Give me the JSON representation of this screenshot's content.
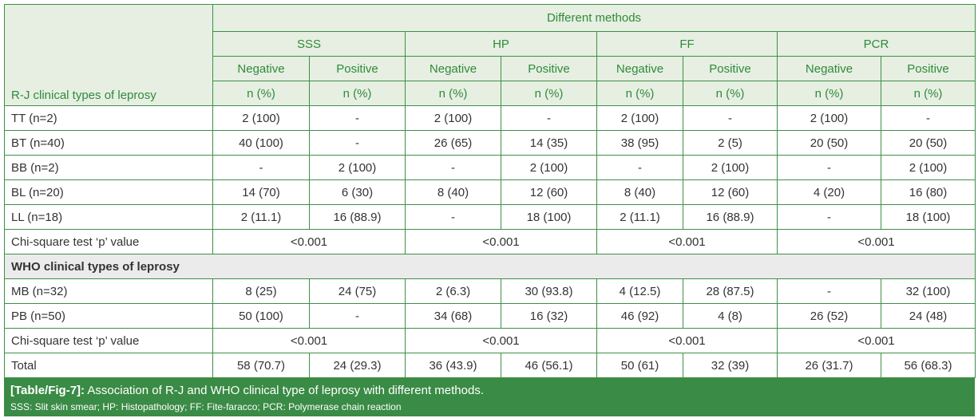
{
  "header": {
    "row_label": "R-J clinical types of leprosy",
    "group_title": "Different methods",
    "methods": [
      "SSS",
      "HP",
      "FF",
      "PCR"
    ],
    "sub": [
      "Negative",
      "Positive",
      "Negative",
      "Positive",
      "Negative",
      "Positive",
      "Negative",
      "Positive"
    ],
    "unit": [
      "n (%)",
      "n (%)",
      "n (%)",
      "n (%)",
      "n (%)",
      "n (%)",
      "n (%)",
      "n (%)"
    ]
  },
  "rj_rows": [
    {
      "label": "TT (n=2)",
      "cells": [
        "2 (100)",
        "-",
        "2 (100)",
        "-",
        "2 (100)",
        "-",
        "2 (100)",
        "-"
      ]
    },
    {
      "label": "BT (n=40)",
      "cells": [
        "40 (100)",
        "-",
        "26 (65)",
        "14 (35)",
        "38 (95)",
        "2 (5)",
        "20 (50)",
        "20 (50)"
      ]
    },
    {
      "label": "BB (n=2)",
      "cells": [
        "-",
        "2 (100)",
        "-",
        "2 (100)",
        "-",
        "2 (100)",
        "-",
        "2 (100)"
      ]
    },
    {
      "label": "BL (n=20)",
      "cells": [
        "14 (70)",
        "6 (30)",
        "8 (40)",
        "12 (60)",
        "8 (40)",
        "12 (60)",
        "4 (20)",
        "16 (80)"
      ]
    },
    {
      "label": "LL (n=18)",
      "cells": [
        "2 (11.1)",
        "16 (88.9)",
        "-",
        "18 (100)",
        "2 (11.1)",
        "16 (88.9)",
        "-",
        "18 (100)"
      ]
    }
  ],
  "rj_chi": {
    "label": "Chi-square test ‘p’ value",
    "values": [
      "<0.001",
      "<0.001",
      "<0.001",
      "<0.001"
    ]
  },
  "who_section": "WHO clinical types of leprosy",
  "who_rows": [
    {
      "label": "MB (n=32)",
      "cells": [
        "8 (25)",
        "24 (75)",
        "2 (6.3)",
        "30 (93.8)",
        "4 (12.5)",
        "28 (87.5)",
        "-",
        "32 (100)"
      ]
    },
    {
      "label": "PB (n=50)",
      "cells": [
        "50 (100)",
        "-",
        "34 (68)",
        "16 (32)",
        "46 (92)",
        "4 (8)",
        "26 (52)",
        "24 (48)"
      ]
    }
  ],
  "who_chi": {
    "label": "Chi-square test ‘p’ value",
    "values": [
      "<0.001",
      "<0.001",
      "<0.001",
      "<0.001"
    ]
  },
  "total": {
    "label": "Total",
    "cells": [
      "58 (70.7)",
      "24 (29.3)",
      "36 (43.9)",
      "46 (56.1)",
      "50 (61)",
      "32 (39)",
      "26 (31.7)",
      "56 (68.3)"
    ]
  },
  "caption": {
    "ref": "[Table/Fig-7]:",
    "text": " Association of R-J and WHO clinical type of leprosy with different methods.",
    "abbrev": "SSS: Slit skin smear; HP: Histopathology; FF: Fite-faracco; PCR: Polymerase chain reaction"
  },
  "colors": {
    "border": "#3e8f48",
    "header_bg": "#e6efe1",
    "header_text": "#2f8a3c",
    "caption_bg": "#3a8b45",
    "section_bg": "#ebebeb"
  }
}
